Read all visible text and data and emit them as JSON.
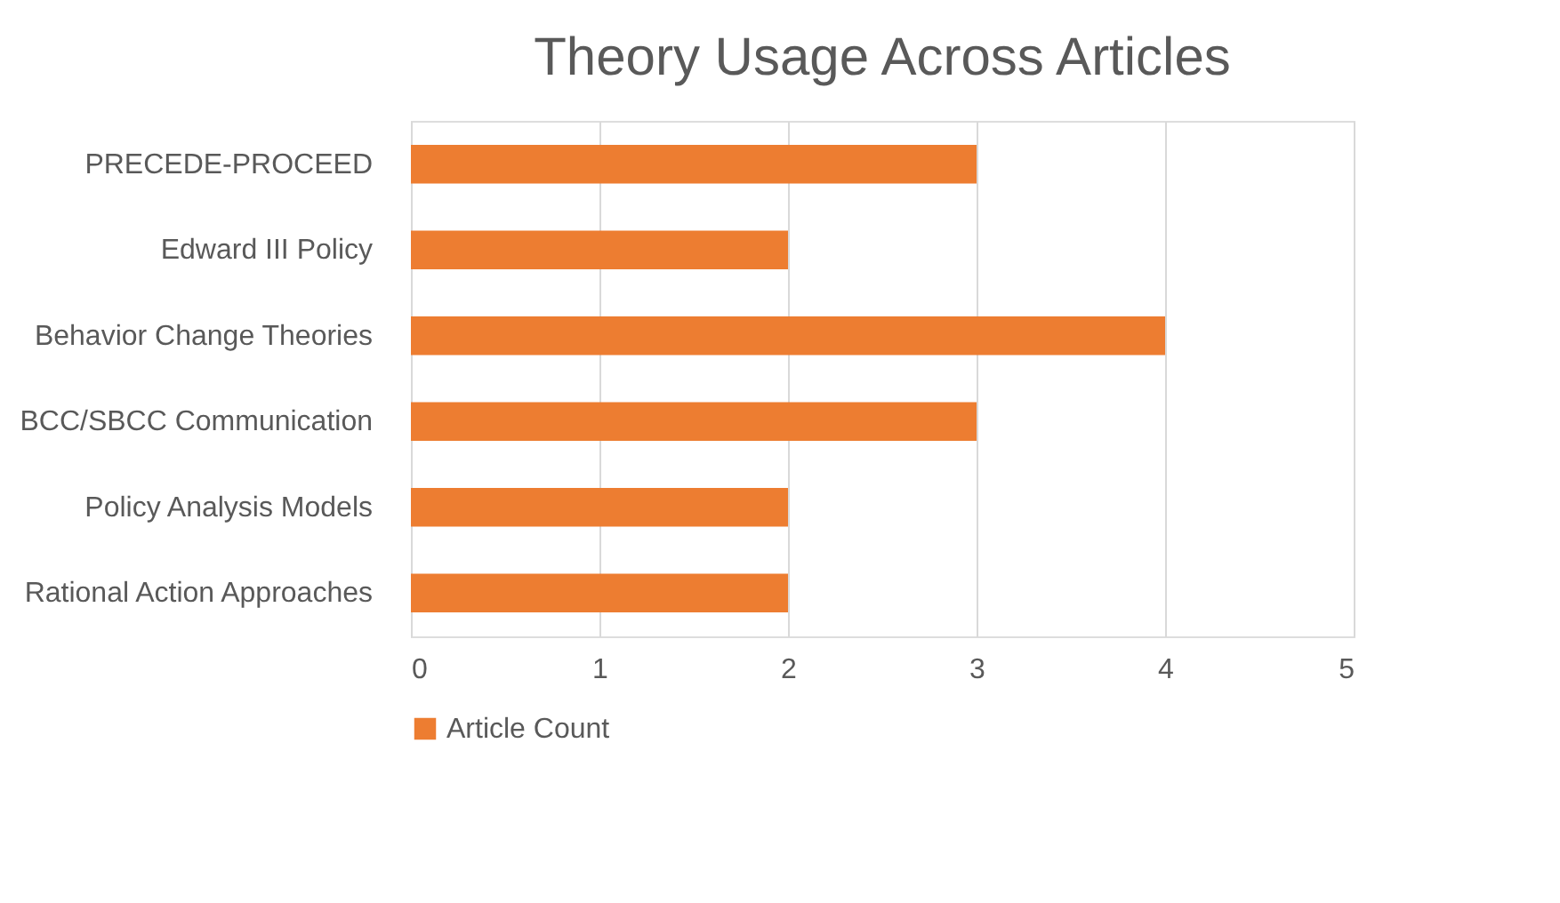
{
  "chart_data": {
    "type": "bar",
    "orientation": "horizontal",
    "title": "Theory Usage Across Articles",
    "categories": [
      "PRECEDE-PROCEED",
      "Edward III Policy",
      "Behavior Change Theories",
      "BCC/SBCC Communication",
      "Policy Analysis Models",
      "Rational Action Approaches"
    ],
    "series": [
      {
        "name": "Article Count",
        "color": "#ed7d31",
        "values": [
          3,
          2,
          4,
          3,
          2,
          2
        ]
      }
    ],
    "xlim": [
      0,
      5
    ],
    "xticks": [
      0,
      1,
      2,
      3,
      4,
      5
    ],
    "grid": "x",
    "legend": "bottom"
  }
}
